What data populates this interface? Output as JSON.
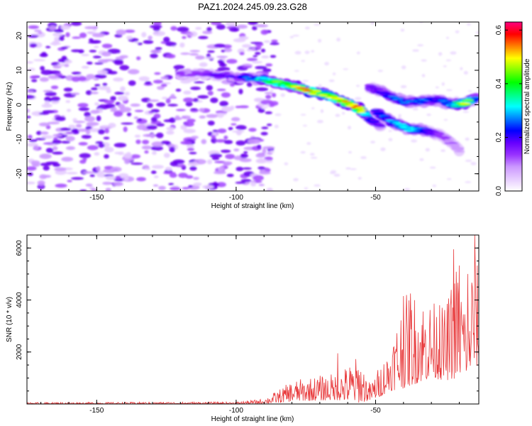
{
  "title": "PAZ1.2024.245.09.23.G28",
  "colors": {
    "snr_line": "#e8383a",
    "axis": "#000000",
    "colormap": [
      "#ffffff",
      "#e6ccff",
      "#cc99ff",
      "#9933ff",
      "#6600ff",
      "#0000ff",
      "#0080ff",
      "#00ffff",
      "#00ff80",
      "#00ff00",
      "#80ff00",
      "#ffff00",
      "#ff8000",
      "#ff0000",
      "#ff0080"
    ]
  },
  "chart_data": [
    {
      "type": "heatmap",
      "name": "spectrogram",
      "xlabel": "Height of straight line (km)",
      "ylabel": "Frequency (Hz)",
      "xlim": [
        -175,
        -13
      ],
      "ylim": [
        -25,
        24
      ],
      "xticks": [
        -150,
        -100,
        -50
      ],
      "yticks": [
        -20,
        -10,
        0,
        10,
        20
      ],
      "colorbar": {
        "label": "Normalized spectral amplitude",
        "range": [
          0,
          0.63
        ],
        "ticks": [
          0.0,
          0.2,
          0.4,
          0.6
        ]
      },
      "ridges": [
        {
          "x": [
            -120,
            -110,
            -100,
            -92,
            -86,
            -80,
            -74,
            -68,
            -62,
            -56,
            -52,
            -48
          ],
          "y": [
            9,
            9,
            8,
            7.5,
            6.5,
            5.5,
            4,
            3,
            1,
            -1,
            -4,
            -6
          ],
          "peak_amplitude": [
            0.15,
            0.2,
            0.22,
            0.35,
            0.45,
            0.5,
            0.62,
            0.5,
            0.55,
            0.6,
            0.25,
            0.2
          ]
        },
        {
          "x": [
            -52,
            -46,
            -40,
            -34,
            -28,
            -22,
            -18,
            -14
          ],
          "y": [
            5,
            3,
            1,
            1,
            1.5,
            0,
            0.5,
            2
          ],
          "peak_amplitude": [
            0.2,
            0.25,
            0.3,
            0.3,
            0.25,
            0.35,
            0.5,
            0.3
          ]
        },
        {
          "x": [
            -50,
            -44,
            -38,
            -32,
            -26,
            -20
          ],
          "y": [
            -2,
            -5,
            -7,
            -7.5,
            -9,
            -13
          ],
          "peak_amplitude": [
            0.25,
            0.3,
            0.35,
            0.25,
            0.15,
            0.1
          ]
        }
      ],
      "background_noise_extent_x": [
        -175,
        -92
      ]
    },
    {
      "type": "line",
      "name": "snr",
      "xlabel": "Height of straight line (km)",
      "ylabel": "SNR (10 * v/v)",
      "xlim": [
        -175,
        -13
      ],
      "ylim": [
        0,
        6500
      ],
      "xticks": [
        -150,
        -100,
        -50
      ],
      "yticks": [
        2000,
        4000,
        6000
      ],
      "envelope": {
        "x": [
          -175,
          -100,
          -90,
          -84,
          -80,
          -75,
          -70,
          -64,
          -60,
          -56,
          -52,
          -48,
          -45,
          -40,
          -35,
          -30,
          -25,
          -20,
          -17,
          -15,
          -13
        ],
        "max": [
          60,
          80,
          200,
          600,
          900,
          1000,
          1100,
          1200,
          1500,
          1900,
          800,
          1600,
          2200,
          4200,
          4300,
          4000,
          3700,
          6000,
          3300,
          6500,
          5000
        ],
        "min": [
          0,
          0,
          20,
          50,
          100,
          120,
          130,
          150,
          100,
          50,
          120,
          300,
          500,
          600,
          800,
          1000,
          900,
          1000,
          1200,
          1300,
          1500
        ]
      },
      "highlights": [
        {
          "x": -63.5,
          "y": 1950
        },
        {
          "x": -40,
          "y": 4150
        },
        {
          "x": -37.5,
          "y": 4250
        },
        {
          "x": -27,
          "y": 3800
        },
        {
          "x": -23,
          "y": 3900
        },
        {
          "x": -22,
          "y": 5950
        },
        {
          "x": -17,
          "y": 5000
        },
        {
          "x": -14.5,
          "y": 6500
        }
      ]
    }
  ]
}
